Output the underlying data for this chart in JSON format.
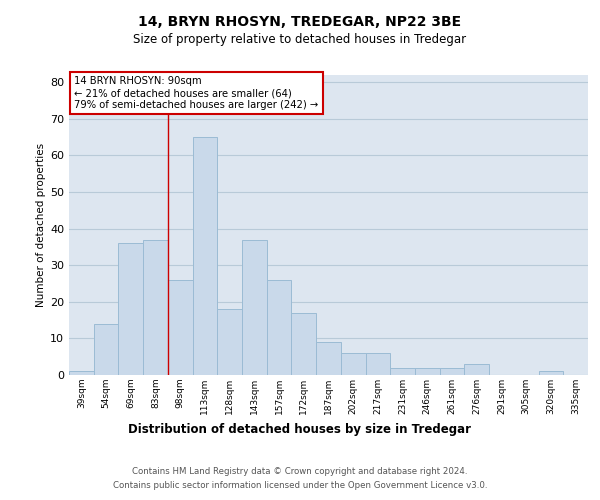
{
  "title1": "14, BRYN RHOSYN, TREDEGAR, NP22 3BE",
  "title2": "Size of property relative to detached houses in Tredegar",
  "xlabel": "Distribution of detached houses by size in Tredegar",
  "ylabel": "Number of detached properties",
  "categories": [
    "39sqm",
    "54sqm",
    "69sqm",
    "83sqm",
    "98sqm",
    "113sqm",
    "128sqm",
    "143sqm",
    "157sqm",
    "172sqm",
    "187sqm",
    "202sqm",
    "217sqm",
    "231sqm",
    "246sqm",
    "261sqm",
    "276sqm",
    "291sqm",
    "305sqm",
    "320sqm",
    "335sqm"
  ],
  "values": [
    1,
    14,
    36,
    37,
    26,
    65,
    18,
    37,
    26,
    17,
    9,
    6,
    6,
    2,
    2,
    2,
    3,
    0,
    0,
    1,
    0
  ],
  "bar_color": "#c9d9ea",
  "bar_edgecolor": "#9bbbd4",
  "vline_x": 3.5,
  "vline_color": "#cc0000",
  "annotation_title": "14 BRYN RHOSYN: 90sqm",
  "annotation_line1": "← 21% of detached houses are smaller (64)",
  "annotation_line2": "79% of semi-detached houses are larger (242) →",
  "annotation_box_edgecolor": "#cc0000",
  "ylim": [
    0,
    82
  ],
  "yticks": [
    0,
    10,
    20,
    30,
    40,
    50,
    60,
    70,
    80
  ],
  "plot_bg_color": "#dde6f0",
  "grid_color": "#b8cad8",
  "footer1": "Contains HM Land Registry data © Crown copyright and database right 2024.",
  "footer2": "Contains public sector information licensed under the Open Government Licence v3.0."
}
